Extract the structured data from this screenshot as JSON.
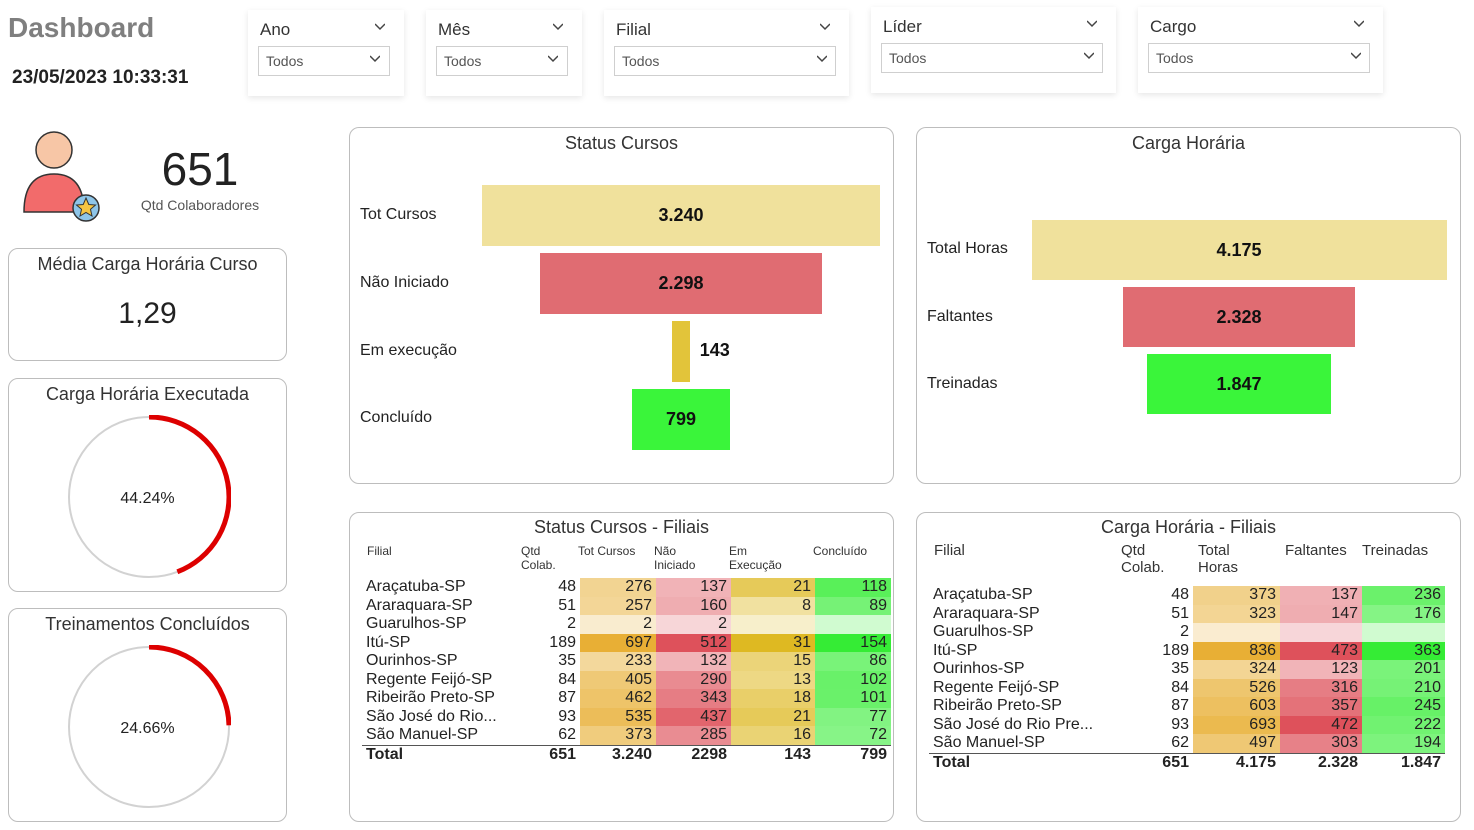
{
  "header": {
    "title": "Dashboard",
    "datetime": "23/05/2023 10:33:31"
  },
  "filters": [
    {
      "label": "Ano",
      "value": "Todos"
    },
    {
      "label": "Mês",
      "value": "Todos"
    },
    {
      "label": "Filial",
      "value": "Todos"
    },
    {
      "label": "Líder",
      "value": "Todos"
    },
    {
      "label": "Cargo",
      "value": "Todos"
    }
  ],
  "kpi_colab": {
    "value": "651",
    "label": "Qtd Colaboradores"
  },
  "kpi_media": {
    "title": "Média Carga Horária Curso",
    "value": "1,29"
  },
  "gauge_exec": {
    "title": "Carga Horária Executada",
    "value_text": "44.24%",
    "fraction": 0.4424
  },
  "gauge_trein": {
    "title": "Treinamentos Concluídos",
    "value_text": "24.66%",
    "fraction": 0.2466
  },
  "colors": {
    "yellow": "#f0e19c",
    "red": "#e06c72",
    "mustard": "#e2c43a",
    "green": "#3af53a"
  },
  "status_cursos": {
    "title": "Status Cursos",
    "rows": [
      {
        "label": "Tot Cursos",
        "value_text": "3.240",
        "value": 3240,
        "color": "#f0e19c"
      },
      {
        "label": "Não Iniciado",
        "value_text": "2.298",
        "value": 2298,
        "color": "#e06c72"
      },
      {
        "label": "Em execução",
        "value_text": "143",
        "value": 143,
        "color": "#e2c43a"
      },
      {
        "label": "Concluído",
        "value_text": "799",
        "value": 799,
        "color": "#3af53a"
      }
    ]
  },
  "carga_horaria": {
    "title": "Carga Horária",
    "rows": [
      {
        "label": "Total Horas",
        "value_text": "4.175",
        "value": 4175,
        "color": "#f0e19c"
      },
      {
        "label": "Faltantes",
        "value_text": "2.328",
        "value": 2328,
        "color": "#e06c72"
      },
      {
        "label": "Treinadas",
        "value_text": "1.847",
        "value": 1847,
        "color": "#3af53a"
      }
    ]
  },
  "status_filiais": {
    "title": "Status Cursos - Filiais",
    "headers": [
      "Filial",
      "Qtd\nColab.",
      "Tot Cursos",
      "Não\nIniciado",
      "Em\nExecução",
      "Concluído"
    ],
    "rows": [
      [
        "Araçatuba-SP",
        "48",
        "276",
        "137",
        "21",
        "118"
      ],
      [
        "Araraquara-SP",
        "51",
        "257",
        "160",
        "8",
        "89"
      ],
      [
        "Guarulhos-SP",
        "2",
        "2",
        "2",
        "",
        ""
      ],
      [
        "Itú-SP",
        "189",
        "697",
        "512",
        "31",
        "154"
      ],
      [
        "Ourinhos-SP",
        "35",
        "233",
        "132",
        "15",
        "86"
      ],
      [
        "Regente Feijó-SP",
        "84",
        "405",
        "290",
        "13",
        "102"
      ],
      [
        "Ribeirão Preto-SP",
        "87",
        "462",
        "343",
        "18",
        "101"
      ],
      [
        "São José do Rio...",
        "93",
        "535",
        "437",
        "21",
        "77"
      ],
      [
        "São Manuel-SP",
        "62",
        "373",
        "285",
        "16",
        "72"
      ]
    ],
    "total": [
      "Total",
      "651",
      "3.240",
      "2298",
      "143",
      "799"
    ]
  },
  "carga_filiais": {
    "title": "Carga Horária - Filiais",
    "headers": [
      "Filial",
      "Qtd\nColab.",
      "Total\nHoras",
      "Faltantes",
      "Treinadas"
    ],
    "rows": [
      [
        "Araçatuba-SP",
        "48",
        "373",
        "137",
        "236"
      ],
      [
        "Araraquara-SP",
        "51",
        "323",
        "147",
        "176"
      ],
      [
        "Guarulhos-SP",
        "2",
        "",
        "",
        ""
      ],
      [
        "Itú-SP",
        "189",
        "836",
        "473",
        "363"
      ],
      [
        "Ourinhos-SP",
        "35",
        "324",
        "123",
        "201"
      ],
      [
        "Regente Feijó-SP",
        "84",
        "526",
        "316",
        "210"
      ],
      [
        "Ribeirão Preto-SP",
        "87",
        "603",
        "357",
        "245"
      ],
      [
        "São José do Rio Pre...",
        "93",
        "693",
        "472",
        "222"
      ],
      [
        "São Manuel-SP",
        "62",
        "497",
        "303",
        "194"
      ]
    ],
    "total": [
      "Total",
      "651",
      "4.175",
      "2.328",
      "1.847"
    ]
  }
}
